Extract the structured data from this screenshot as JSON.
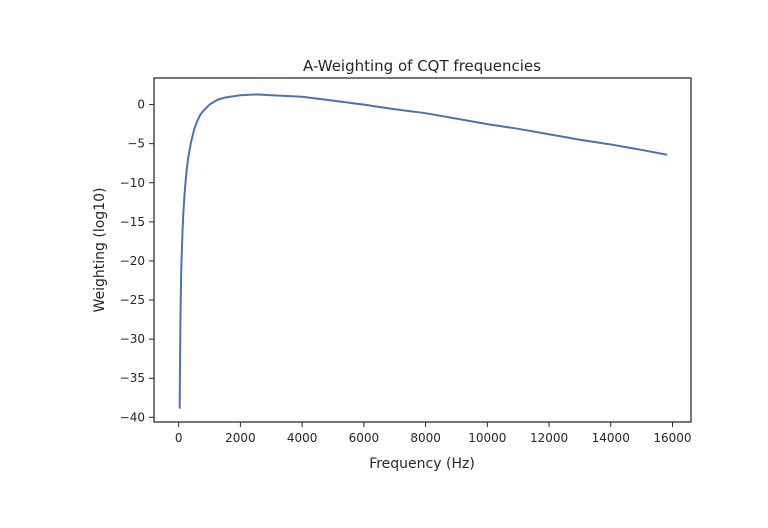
{
  "chart_data": {
    "type": "line",
    "title": "A-Weighting of CQT frequencies",
    "xlabel": "Frequency (Hz)",
    "ylabel": "Weighting (log10)",
    "xlim": [
      -800,
      16600
    ],
    "ylim": [
      -40.6,
      3.4
    ],
    "xticks": [
      0,
      2000,
      4000,
      6000,
      8000,
      10000,
      12000,
      14000,
      16000
    ],
    "yticks": [
      0,
      -5,
      -10,
      -15,
      -20,
      -25,
      -30,
      -35,
      -40
    ],
    "grid": false,
    "colors": {
      "line": "#4c72b0",
      "axes": "#262626"
    },
    "series": [
      {
        "x": [
          32.7,
          40,
          50,
          60,
          80,
          100,
          125,
          150,
          200,
          250,
          300,
          400,
          500,
          600,
          700,
          800,
          1000,
          1250,
          1500,
          2000,
          2500,
          3000,
          4000,
          5000,
          6000,
          7000,
          8000,
          9000,
          10000,
          11000,
          12000,
          13000,
          14000,
          15000,
          15805
        ],
        "y": [
          -38.8,
          -34.6,
          -30.2,
          -26.6,
          -21.5,
          -19.1,
          -16.1,
          -13.9,
          -10.9,
          -8.7,
          -7.0,
          -4.8,
          -3.2,
          -2.1,
          -1.3,
          -0.8,
          0.0,
          0.6,
          0.9,
          1.2,
          1.3,
          1.2,
          1.0,
          0.5,
          0.0,
          -0.6,
          -1.1,
          -1.8,
          -2.5,
          -3.1,
          -3.8,
          -4.5,
          -5.1,
          -5.8,
          -6.4
        ]
      }
    ]
  }
}
